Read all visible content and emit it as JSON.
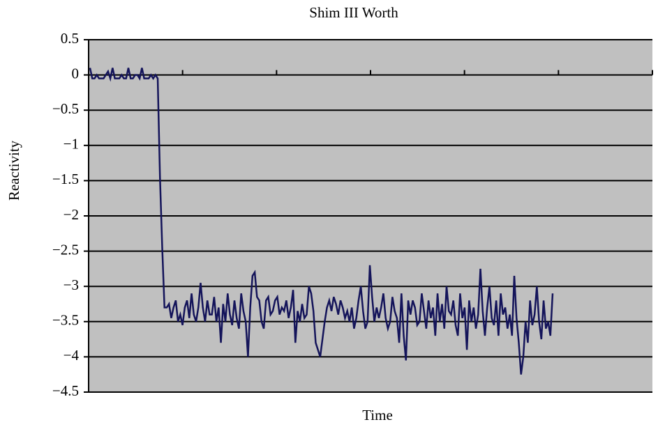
{
  "chart_data": {
    "type": "line",
    "title": "Shim III Worth",
    "x_label": "Time",
    "y_label": "Reactivity",
    "series": [
      {
        "name": "Reactivity",
        "color": "#14145a",
        "values": [
          0.1,
          -0.05,
          -0.05,
          0,
          -0.05,
          -0.05,
          -0.05,
          0,
          0.05,
          -0.05,
          0.1,
          -0.05,
          -0.05,
          -0.05,
          0,
          -0.05,
          -0.05,
          0.1,
          -0.05,
          -0.05,
          0,
          0,
          -0.05,
          0.1,
          -0.05,
          -0.05,
          -0.05,
          0,
          -0.05,
          0,
          -0.05,
          -1.45,
          -2.45,
          -3.3,
          -3.3,
          -3.25,
          -3.45,
          -3.3,
          -3.2,
          -3.5,
          -3.4,
          -3.55,
          -3.3,
          -3.2,
          -3.45,
          -3.1,
          -3.4,
          -3.5,
          -3.3,
          -2.95,
          -3.3,
          -3.5,
          -3.2,
          -3.4,
          -3.4,
          -3.15,
          -3.5,
          -3.3,
          -3.8,
          -3.25,
          -3.5,
          -3.1,
          -3.4,
          -3.55,
          -3.2,
          -3.45,
          -3.6,
          -3.1,
          -3.35,
          -3.5,
          -4.0,
          -3.3,
          -2.85,
          -2.8,
          -3.15,
          -3.2,
          -3.5,
          -3.6,
          -3.2,
          -3.15,
          -3.4,
          -3.35,
          -3.2,
          -3.15,
          -3.4,
          -3.3,
          -3.35,
          -3.2,
          -3.45,
          -3.3,
          -3.05,
          -3.8,
          -3.35,
          -3.5,
          -3.25,
          -3.45,
          -3.4,
          -3.0,
          -3.1,
          -3.35,
          -3.8,
          -3.9,
          -4.0,
          -3.75,
          -3.5,
          -3.3,
          -3.2,
          -3.35,
          -3.15,
          -3.25,
          -3.4,
          -3.2,
          -3.3,
          -3.45,
          -3.35,
          -3.5,
          -3.3,
          -3.6,
          -3.45,
          -3.2,
          -3.0,
          -3.35,
          -3.6,
          -3.5,
          -2.7,
          -3.15,
          -3.5,
          -3.3,
          -3.45,
          -3.3,
          -3.1,
          -3.45,
          -3.6,
          -3.5,
          -3.15,
          -3.35,
          -3.45,
          -3.8,
          -3.1,
          -3.7,
          -4.05,
          -3.2,
          -3.4,
          -3.2,
          -3.3,
          -3.55,
          -3.5,
          -3.1,
          -3.35,
          -3.6,
          -3.2,
          -3.45,
          -3.3,
          -3.7,
          -3.1,
          -3.5,
          -3.25,
          -3.6,
          -3.0,
          -3.35,
          -3.4,
          -3.2,
          -3.55,
          -3.7,
          -3.1,
          -3.45,
          -3.3,
          -3.9,
          -3.2,
          -3.5,
          -3.3,
          -3.6,
          -3.4,
          -2.75,
          -3.35,
          -3.7,
          -3.3,
          -3.0,
          -3.45,
          -3.55,
          -3.2,
          -3.7,
          -3.1,
          -3.4,
          -3.3,
          -3.6,
          -3.4,
          -3.7,
          -2.85,
          -3.45,
          -3.8,
          -4.25,
          -4.0,
          -3.5,
          -3.8,
          -3.2,
          -3.55,
          -3.4,
          -3.0,
          -3.5,
          -3.75,
          -3.2,
          -3.6,
          -3.5,
          -3.7,
          -3.1
        ]
      }
    ],
    "ylim": [
      -4.5,
      0.5
    ],
    "yticks": [
      0.5,
      0,
      {
        "value": -0.5,
        "label": "−0.5"
      },
      {
        "value": -1,
        "label": "−1"
      },
      {
        "value": -1.5,
        "label": "−1.5"
      },
      {
        "value": -2,
        "label": "−2"
      },
      {
        "value": -2.5,
        "label": "−2.5"
      },
      {
        "value": -3,
        "label": "−3"
      },
      {
        "value": -3.5,
        "label": "−3.5"
      },
      {
        "value": -4,
        "label": "−4"
      },
      {
        "value": -4.5,
        "label": "−4.5"
      }
    ],
    "grid": true,
    "plot_background": "#c0c0c0"
  }
}
